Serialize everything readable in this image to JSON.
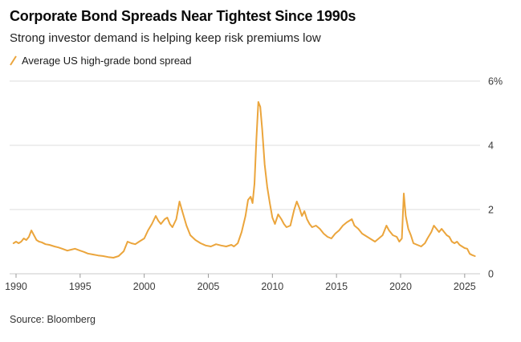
{
  "header": {
    "title": "Corporate Bond Spreads Near Tightest Since 1990s",
    "subtitle": "Strong investor demand is helping keep risk premiums low"
  },
  "legend": {
    "label": "Average US high-grade bond spread"
  },
  "source": "Source: Bloomberg",
  "chart_data": {
    "type": "line",
    "title": "Corporate Bond Spreads Near Tightest Since 1990s",
    "series_name": "Average US high-grade bond spread",
    "line_color": "#EBA53C",
    "unit": "%",
    "xlim": [
      1989.5,
      2026.2
    ],
    "ylim": [
      0,
      6
    ],
    "x_ticks": [
      "1990",
      "1995",
      "2000",
      "2005",
      "2010",
      "2015",
      "2020",
      "2025"
    ],
    "x_tick_values": [
      1990,
      1995,
      2000,
      2005,
      2010,
      2015,
      2020,
      2025
    ],
    "y_ticks": [
      0,
      2,
      4,
      6
    ],
    "y_tick_labels": [
      "0",
      "2",
      "4",
      "6%"
    ],
    "grid": "horizontal",
    "legend_position": "top-left",
    "points": [
      [
        1989.8,
        0.95
      ],
      [
        1990.0,
        1.0
      ],
      [
        1990.2,
        0.95
      ],
      [
        1990.4,
        1.0
      ],
      [
        1990.6,
        1.1
      ],
      [
        1990.8,
        1.05
      ],
      [
        1991.0,
        1.15
      ],
      [
        1991.2,
        1.35
      ],
      [
        1991.4,
        1.2
      ],
      [
        1991.6,
        1.05
      ],
      [
        1991.8,
        1.0
      ],
      [
        1992.0,
        0.98
      ],
      [
        1992.3,
        0.92
      ],
      [
        1992.6,
        0.9
      ],
      [
        1993.0,
        0.85
      ],
      [
        1993.3,
        0.82
      ],
      [
        1993.6,
        0.78
      ],
      [
        1994.0,
        0.72
      ],
      [
        1994.3,
        0.75
      ],
      [
        1994.6,
        0.78
      ],
      [
        1995.0,
        0.72
      ],
      [
        1995.3,
        0.68
      ],
      [
        1995.6,
        0.63
      ],
      [
        1996.0,
        0.6
      ],
      [
        1996.4,
        0.57
      ],
      [
        1996.8,
        0.55
      ],
      [
        1997.2,
        0.52
      ],
      [
        1997.6,
        0.5
      ],
      [
        1998.0,
        0.55
      ],
      [
        1998.4,
        0.7
      ],
      [
        1998.7,
        1.0
      ],
      [
        1999.0,
        0.95
      ],
      [
        1999.3,
        0.92
      ],
      [
        1999.6,
        1.0
      ],
      [
        2000.0,
        1.1
      ],
      [
        2000.3,
        1.35
      ],
      [
        2000.6,
        1.55
      ],
      [
        2000.9,
        1.8
      ],
      [
        2001.1,
        1.65
      ],
      [
        2001.3,
        1.55
      ],
      [
        2001.6,
        1.7
      ],
      [
        2001.8,
        1.75
      ],
      [
        2002.0,
        1.55
      ],
      [
        2002.2,
        1.45
      ],
      [
        2002.5,
        1.7
      ],
      [
        2002.75,
        2.25
      ],
      [
        2003.0,
        1.9
      ],
      [
        2003.3,
        1.5
      ],
      [
        2003.6,
        1.2
      ],
      [
        2004.0,
        1.05
      ],
      [
        2004.4,
        0.95
      ],
      [
        2004.8,
        0.88
      ],
      [
        2005.2,
        0.85
      ],
      [
        2005.6,
        0.92
      ],
      [
        2006.0,
        0.88
      ],
      [
        2006.4,
        0.85
      ],
      [
        2006.8,
        0.9
      ],
      [
        2007.0,
        0.85
      ],
      [
        2007.3,
        0.95
      ],
      [
        2007.6,
        1.3
      ],
      [
        2007.9,
        1.8
      ],
      [
        2008.1,
        2.3
      ],
      [
        2008.3,
        2.4
      ],
      [
        2008.45,
        2.2
      ],
      [
        2008.6,
        2.8
      ],
      [
        2008.75,
        4.2
      ],
      [
        2008.9,
        5.35
      ],
      [
        2009.05,
        5.2
      ],
      [
        2009.2,
        4.5
      ],
      [
        2009.4,
        3.4
      ],
      [
        2009.6,
        2.7
      ],
      [
        2009.8,
        2.2
      ],
      [
        2010.0,
        1.75
      ],
      [
        2010.2,
        1.55
      ],
      [
        2010.45,
        1.85
      ],
      [
        2010.7,
        1.7
      ],
      [
        2010.9,
        1.55
      ],
      [
        2011.1,
        1.45
      ],
      [
        2011.4,
        1.5
      ],
      [
        2011.7,
        2.0
      ],
      [
        2011.9,
        2.25
      ],
      [
        2012.1,
        2.05
      ],
      [
        2012.3,
        1.8
      ],
      [
        2012.5,
        1.95
      ],
      [
        2012.7,
        1.7
      ],
      [
        2012.9,
        1.55
      ],
      [
        2013.1,
        1.45
      ],
      [
        2013.4,
        1.5
      ],
      [
        2013.7,
        1.4
      ],
      [
        2014.0,
        1.25
      ],
      [
        2014.3,
        1.15
      ],
      [
        2014.6,
        1.1
      ],
      [
        2014.9,
        1.25
      ],
      [
        2015.2,
        1.35
      ],
      [
        2015.5,
        1.5
      ],
      [
        2015.8,
        1.6
      ],
      [
        2016.0,
        1.65
      ],
      [
        2016.2,
        1.7
      ],
      [
        2016.4,
        1.5
      ],
      [
        2016.7,
        1.4
      ],
      [
        2017.0,
        1.25
      ],
      [
        2017.4,
        1.15
      ],
      [
        2017.8,
        1.05
      ],
      [
        2018.0,
        1.0
      ],
      [
        2018.3,
        1.1
      ],
      [
        2018.6,
        1.2
      ],
      [
        2018.9,
        1.5
      ],
      [
        2019.1,
        1.35
      ],
      [
        2019.4,
        1.2
      ],
      [
        2019.7,
        1.15
      ],
      [
        2019.9,
        1.0
      ],
      [
        2020.1,
        1.1
      ],
      [
        2020.25,
        2.5
      ],
      [
        2020.4,
        1.8
      ],
      [
        2020.6,
        1.4
      ],
      [
        2020.8,
        1.2
      ],
      [
        2021.0,
        0.95
      ],
      [
        2021.3,
        0.9
      ],
      [
        2021.6,
        0.85
      ],
      [
        2021.9,
        0.95
      ],
      [
        2022.1,
        1.1
      ],
      [
        2022.4,
        1.3
      ],
      [
        2022.6,
        1.5
      ],
      [
        2022.8,
        1.4
      ],
      [
        2023.0,
        1.3
      ],
      [
        2023.2,
        1.4
      ],
      [
        2023.4,
        1.3
      ],
      [
        2023.6,
        1.2
      ],
      [
        2023.8,
        1.15
      ],
      [
        2024.0,
        1.0
      ],
      [
        2024.2,
        0.95
      ],
      [
        2024.4,
        1.0
      ],
      [
        2024.6,
        0.9
      ],
      [
        2024.8,
        0.85
      ],
      [
        2025.0,
        0.8
      ],
      [
        2025.2,
        0.78
      ],
      [
        2025.4,
        0.62
      ],
      [
        2025.6,
        0.58
      ],
      [
        2025.8,
        0.55
      ]
    ]
  }
}
